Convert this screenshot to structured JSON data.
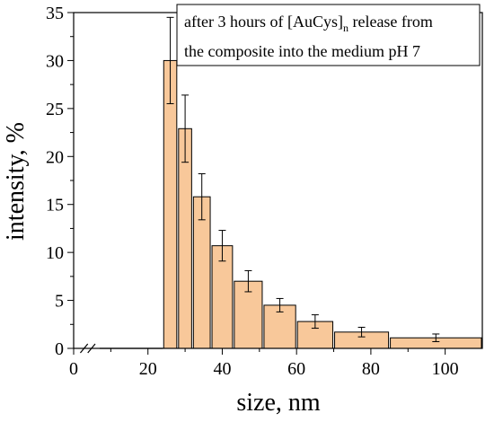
{
  "chart_data": {
    "type": "bar",
    "xlabel": "size, nm",
    "ylabel": "intensity, %",
    "xlim": [
      0,
      110
    ],
    "ylim": [
      0,
      35
    ],
    "x_axis_break": true,
    "x_ticks": [
      "0",
      "20",
      "40",
      "60",
      "80",
      "100"
    ],
    "y_ticks": [
      "0",
      "5",
      "10",
      "15",
      "20",
      "25",
      "30",
      "35"
    ],
    "bars": [
      {
        "x_start": 24.0,
        "x_end": 28.0,
        "value": 30.0,
        "error": 4.5
      },
      {
        "x_start": 28.0,
        "x_end": 32.0,
        "value": 22.9,
        "error": 3.5
      },
      {
        "x_start": 32.0,
        "x_end": 37.0,
        "value": 15.8,
        "error": 2.4
      },
      {
        "x_start": 37.0,
        "x_end": 43.0,
        "value": 10.7,
        "error": 1.6
      },
      {
        "x_start": 43.0,
        "x_end": 51.0,
        "value": 7.0,
        "error": 1.1
      },
      {
        "x_start": 51.0,
        "x_end": 60.0,
        "value": 4.5,
        "error": 0.7
      },
      {
        "x_start": 60.0,
        "x_end": 70.0,
        "value": 2.8,
        "error": 0.7
      },
      {
        "x_start": 70.0,
        "x_end": 85.0,
        "value": 1.7,
        "error": 0.5
      },
      {
        "x_start": 85.0,
        "x_end": 110.0,
        "value": 1.1,
        "error": 0.4
      }
    ],
    "bar_color": "#f8c89a",
    "bar_edge_color": "#000000",
    "annotation": {
      "line1_prefix": "after 3 hours of [AuCys]",
      "line1_subscript": "n",
      "line1_suffix": " release from",
      "line2": "the composite into the medium pH 7"
    },
    "grid": false,
    "legend": "none"
  }
}
